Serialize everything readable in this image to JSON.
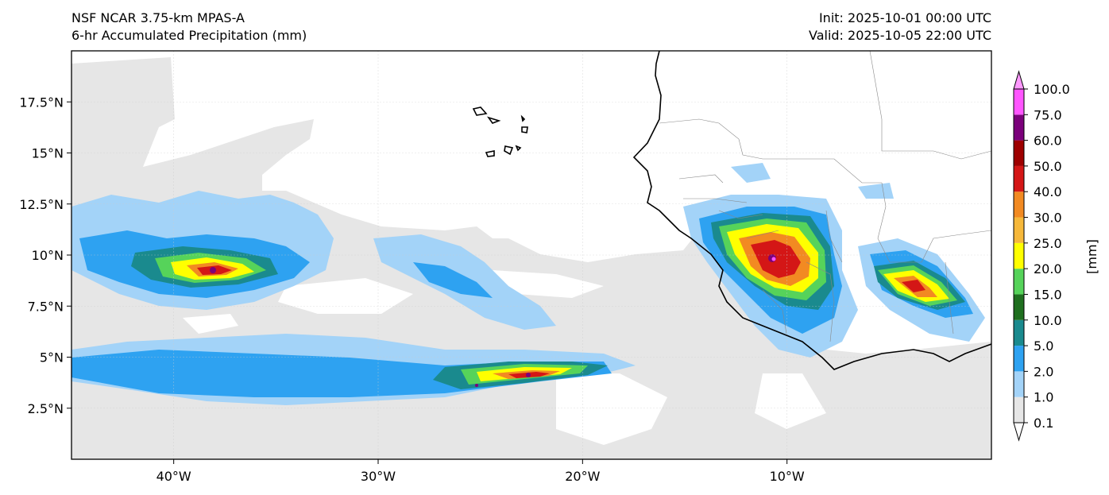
{
  "header": {
    "model": "NSF NCAR 3.75-km MPAS-A",
    "field": "6-hr Accumulated Precipitation (mm)",
    "init": "Init: 2025-10-01 00:00 UTC",
    "valid": "Valid: 2025-10-05 22:00 UTC"
  },
  "map": {
    "lon_range": [
      -45,
      0
    ],
    "lat_range": [
      0,
      20
    ],
    "lon_ticks": [
      "40°W",
      "30°W",
      "20°W",
      "10°W"
    ],
    "lon_tick_values": [
      -40,
      -30,
      -20,
      -10
    ],
    "lat_ticks": [
      "17.5°N",
      "15°N",
      "12.5°N",
      "10°N",
      "7.5°N",
      "5°N",
      "2.5°N"
    ],
    "lat_tick_values": [
      17.5,
      15,
      12.5,
      10,
      7.5,
      5,
      2.5
    ],
    "gridlines": true,
    "background_color": "#ffffff",
    "coastline_color": "#000000"
  },
  "colorbar": {
    "unit_label": "[mm]",
    "levels": [
      "0.1",
      "1.0",
      "2.0",
      "5.0",
      "10.0",
      "15.0",
      "20.0",
      "25.0",
      "30.0",
      "40.0",
      "50.0",
      "60.0",
      "75.0",
      "100.0"
    ],
    "colors": [
      "#e6e6e6",
      "#a3d3f8",
      "#2ea2f1",
      "#1a8a8e",
      "#1f6f1f",
      "#56d35a",
      "#ffff00",
      "#f6b83a",
      "#f28a22",
      "#d41616",
      "#9e0000",
      "#7b007b",
      "#ff55ff"
    ]
  }
}
